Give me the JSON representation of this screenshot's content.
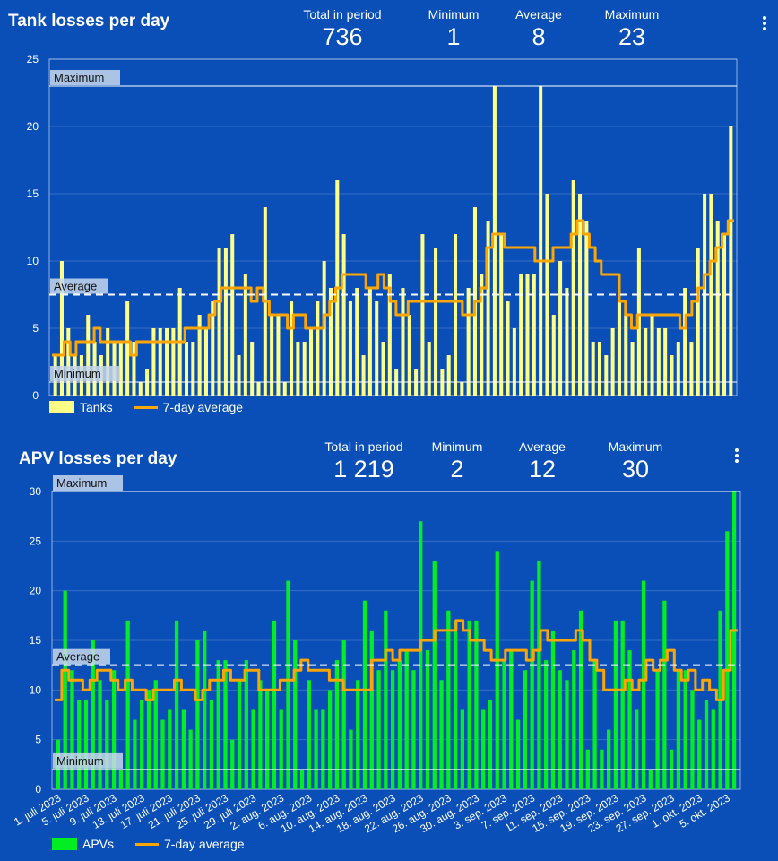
{
  "charts": [
    {
      "title": "Tank losses per day",
      "stats": [
        {
          "label": "Total in period",
          "value": "736"
        },
        {
          "label": "Minimum",
          "value": "1"
        },
        {
          "label": "Average",
          "value": "8"
        },
        {
          "label": "Maximum",
          "value": "23"
        }
      ],
      "legend": [
        {
          "label": "Tanks",
          "color": "#ffff88"
        },
        {
          "label": "7-day average",
          "color": "#ffa500"
        }
      ]
    },
    {
      "title": "APV losses per day",
      "stats": [
        {
          "label": "Total in period",
          "value": "1 219"
        },
        {
          "label": "Minimum",
          "value": "2"
        },
        {
          "label": "Average",
          "value": "12"
        },
        {
          "label": "Maximum",
          "value": "30"
        }
      ],
      "legend": [
        {
          "label": "APVs",
          "color": "#00ee22"
        },
        {
          "label": "7-day average",
          "color": "#ffa500"
        }
      ]
    }
  ],
  "chart_data": [
    {
      "type": "bar",
      "title": "Tank losses per day",
      "xlabel": "",
      "ylabel": "",
      "ylim": [
        0,
        25
      ],
      "y_ticks": [
        0,
        5,
        10,
        15,
        20,
        25
      ],
      "grid": true,
      "legend_position": "bottom-left",
      "x_tick_labels": [],
      "series": [
        {
          "name": "Tanks",
          "color": "#ffff88",
          "type": "bar",
          "values": [
            3,
            10,
            5,
            3,
            3,
            6,
            4,
            3,
            5,
            4,
            4,
            7,
            4,
            1,
            2,
            5,
            5,
            5,
            5,
            8,
            4,
            4,
            6,
            5,
            7,
            11,
            11,
            12,
            3,
            9,
            4,
            1,
            14,
            6,
            6,
            1,
            7,
            4,
            4,
            5,
            7,
            10,
            8,
            16,
            12,
            7,
            8,
            3,
            8,
            7,
            4,
            9,
            2,
            8,
            6,
            2,
            12,
            4,
            11,
            2,
            3,
            12,
            1,
            8,
            14,
            9,
            13,
            23,
            12,
            7,
            5,
            9,
            9,
            9,
            23,
            15,
            6,
            10,
            8,
            16,
            15,
            13,
            4,
            4,
            3,
            5,
            7,
            6,
            4,
            11,
            5,
            6,
            5,
            5,
            3,
            4,
            8,
            4,
            11,
            15,
            15,
            13,
            12,
            20
          ]
        },
        {
          "name": "7-day average",
          "color": "#ffa500",
          "type": "line",
          "values": [
            3,
            3,
            4,
            3,
            4,
            4,
            4,
            5,
            4,
            4,
            4,
            4,
            4,
            3,
            4,
            4,
            4,
            4,
            4,
            4,
            4,
            4,
            5,
            5,
            5,
            5,
            6,
            7,
            8,
            8,
            8,
            8,
            8,
            7,
            8,
            7,
            6,
            6,
            6,
            5,
            6,
            6,
            5,
            5,
            5,
            6,
            7,
            8,
            9,
            9,
            9,
            9,
            8,
            8,
            9,
            8,
            7,
            6,
            6,
            7,
            7,
            7,
            7,
            7,
            7,
            7,
            7,
            7,
            6,
            6,
            7,
            8,
            11,
            12,
            12,
            11,
            11,
            11,
            11,
            11,
            10,
            10,
            10,
            11,
            11,
            11,
            12,
            13,
            12,
            11,
            10,
            9,
            9,
            9,
            7,
            6,
            5,
            6,
            6,
            6,
            6,
            6,
            6,
            6,
            5,
            6,
            7,
            8,
            9,
            10,
            11,
            12,
            13
          ]
        }
      ],
      "reference_lines": [
        {
          "label": "Maximum",
          "value": 23
        },
        {
          "label": "Average",
          "value": 7.5
        },
        {
          "label": "Minimum",
          "value": 1
        }
      ]
    },
    {
      "type": "bar",
      "title": "APV losses per day",
      "xlabel": "",
      "ylabel": "",
      "ylim": [
        0,
        30
      ],
      "y_ticks": [
        0,
        5,
        10,
        15,
        20,
        25,
        30
      ],
      "grid": true,
      "legend_position": "bottom-left",
      "x_tick_labels": [
        "1. juli 2023",
        "5. juli 2023",
        "9. juli 2023",
        "13. juli 2023",
        "17. juli 2023",
        "21. juli 2023",
        "25. juli 2023",
        "29. juli 2023",
        "2. aug. 2023",
        "6. aug. 2023",
        "10. aug. 2023",
        "14. aug. 2023",
        "18. aug. 2023",
        "22. aug. 2023",
        "26. aug. 2023",
        "30. aug. 2023",
        "3. sep. 2023",
        "7. sep. 2023",
        "11. sep. 2023",
        "15. sep. 2023",
        "19. sep. 2023",
        "23. sep. 2023",
        "27. sep. 2023",
        "1. okt. 2023",
        "5. okt. 2023"
      ],
      "series": [
        {
          "name": "APVs",
          "color": "#00ee22",
          "type": "bar",
          "values": [
            5,
            20,
            12,
            9,
            9,
            15,
            11,
            9,
            12,
            2,
            17,
            7,
            9,
            10,
            11,
            7,
            8,
            17,
            8,
            6,
            15,
            16,
            9,
            13,
            13,
            5,
            11,
            13,
            8,
            11,
            10,
            17,
            8,
            21,
            15,
            2,
            11,
            8,
            8,
            10,
            13,
            15,
            6,
            11,
            19,
            16,
            12,
            18,
            12,
            13,
            14,
            12,
            27,
            14,
            23,
            11,
            18,
            17,
            8,
            17,
            17,
            8,
            9,
            24,
            13,
            14,
            7,
            12,
            21,
            23,
            13,
            16,
            12,
            11,
            14,
            18,
            4,
            13,
            4,
            6,
            17,
            17,
            14,
            8,
            21,
            2,
            12,
            19,
            4,
            12,
            12,
            10,
            7,
            9,
            8,
            18,
            26,
            30
          ]
        },
        {
          "name": "7-day average",
          "color": "#ffa500",
          "type": "line",
          "values": [
            9,
            12,
            11,
            11,
            10,
            11,
            12,
            12,
            11,
            10,
            11,
            10,
            10,
            9,
            10,
            10,
            10,
            11,
            10,
            10,
            9,
            10,
            11,
            11,
            12,
            11,
            11,
            12,
            12,
            10,
            10,
            10,
            11,
            11,
            12,
            13,
            12,
            12,
            12,
            11,
            11,
            10,
            10,
            10,
            10,
            13,
            13,
            14,
            13,
            14,
            14,
            14,
            15,
            15,
            16,
            16,
            16,
            17,
            16,
            15,
            15,
            14,
            13,
            13,
            14,
            14,
            14,
            13,
            14,
            16,
            15,
            15,
            15,
            15,
            16,
            15,
            13,
            12,
            10,
            10,
            10,
            11,
            10,
            11,
            13,
            12,
            13,
            14,
            12,
            11,
            12,
            10,
            11,
            10,
            9,
            12,
            16
          ]
        }
      ],
      "reference_lines": [
        {
          "label": "Maximum",
          "value": 30
        },
        {
          "label": "Average",
          "value": 12.5
        },
        {
          "label": "Minimum",
          "value": 2
        }
      ]
    }
  ]
}
